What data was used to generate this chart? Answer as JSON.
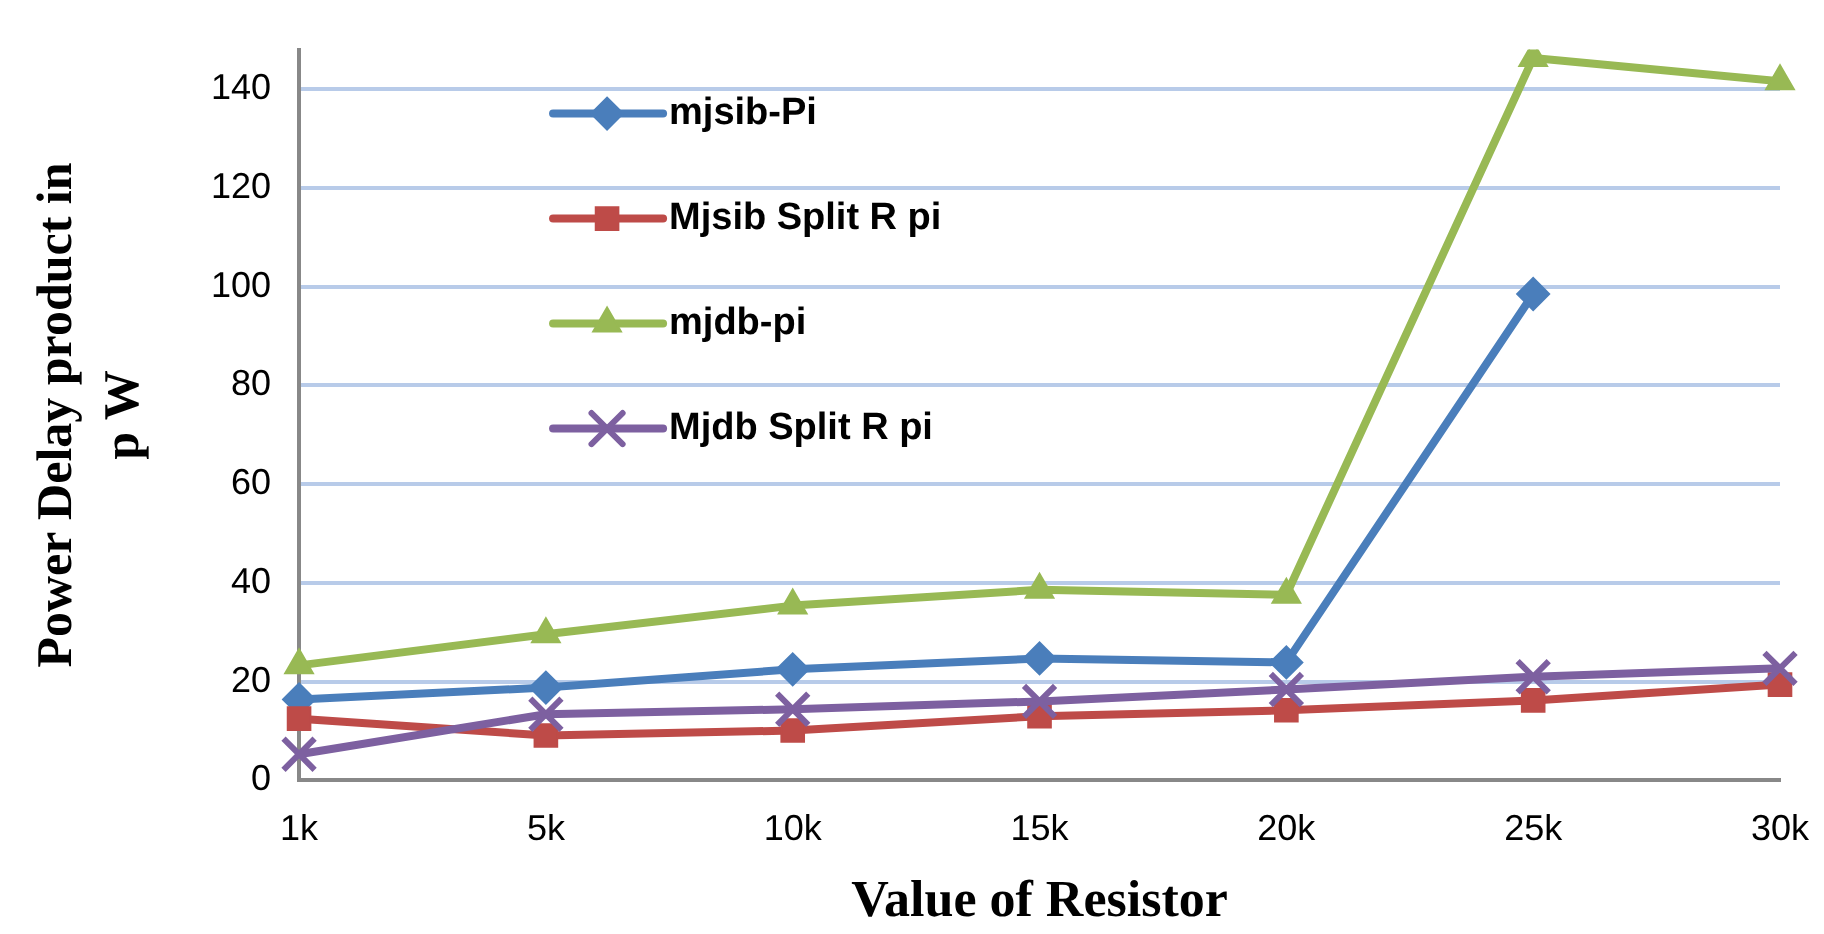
{
  "chart_data": {
    "type": "line",
    "xlabel": "Value of Resistor",
    "ylabel": "Power Delay product in p W",
    "categories": [
      "1k",
      "5k",
      "10k",
      "15k",
      "20k",
      "25k",
      "30k"
    ],
    "ylim": [
      0,
      148
    ],
    "yticks": [
      0,
      20,
      40,
      60,
      80,
      100,
      120,
      140
    ],
    "grid": "y",
    "legend": "top left",
    "line_style": "solid",
    "series": [
      {
        "name": "mjsib-Pi",
        "color": "#4a7ebb",
        "marker": "diamond",
        "values": [
          16.4,
          18.8,
          22.5,
          24.7,
          23.9,
          98.5,
          null
        ]
      },
      {
        "name": "Mjsib Split R pi",
        "color": "#be4b48",
        "marker": "square",
        "values": [
          12.5,
          9.1,
          10.1,
          13,
          14.2,
          16.2,
          19.4
        ]
      },
      {
        "name": "mjdb-pi",
        "color": "#98b954",
        "marker": "triangle",
        "values": [
          23.3,
          29.6,
          35.4,
          38.6,
          37.6,
          146.3,
          141.6
        ]
      },
      {
        "name": "Mjdb Split R pi",
        "color": "#7d60a0",
        "marker": "cross",
        "values": [
          5.3,
          13.4,
          14.4,
          16,
          18.4,
          21,
          22.7
        ]
      }
    ]
  }
}
